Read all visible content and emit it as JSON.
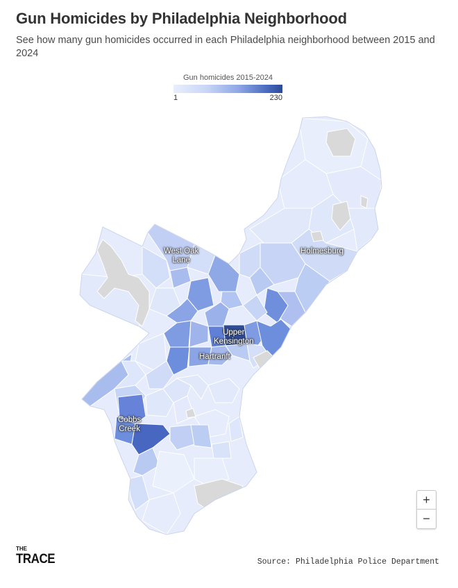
{
  "header": {
    "title": "Gun Homicides by Philadelphia Neighborhood",
    "subtitle": "See how many gun homicides occurred in each Philadelphia neighborhood between 2015 and 2024"
  },
  "legend": {
    "title": "Gun homicides 2015-2024",
    "min": "1",
    "max": "230",
    "colors": [
      "#e8eefc",
      "#c9d6f6",
      "#8ea6e6",
      "#4b6cc0",
      "#2c4a96"
    ]
  },
  "map": {
    "labels": {
      "west_oak_lane": "West Oak\nLane",
      "holmesburg": "Holmesburg",
      "upper_kensington": "Upper\nKensington",
      "hartranft": "Hartranft",
      "cobbs_creek": "Cobbs\nCreek"
    },
    "no_data_color": "#d9d9d9"
  },
  "controls": {
    "zoom_in": "+",
    "zoom_out": "−"
  },
  "footer": {
    "brand_small": "THE",
    "brand_big": "TRACE",
    "source": "Source: Philadelphia Police Department"
  }
}
